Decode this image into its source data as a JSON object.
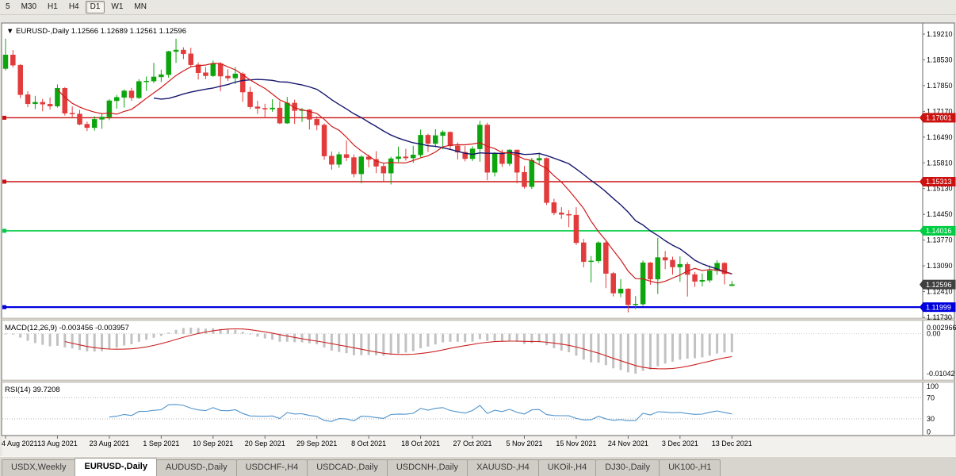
{
  "toolbar": {
    "timeframes": [
      {
        "label": "5",
        "active": false
      },
      {
        "label": "M30",
        "active": false
      },
      {
        "label": "H1",
        "active": false
      },
      {
        "label": "H4",
        "active": false
      },
      {
        "label": "D1",
        "active": true
      },
      {
        "label": "W1",
        "active": false
      },
      {
        "label": "MN",
        "active": false
      }
    ]
  },
  "chart": {
    "title_marker": "▼",
    "symbol_title": "EURUSD-,Daily",
    "ohlc": {
      "open": "1.12566",
      "high": "1.12689",
      "low": "1.12561",
      "close": "1.12596"
    },
    "price_axis_labels": [
      "1.19210",
      "1.18530",
      "1.17850",
      "1.17170",
      "1.16490",
      "1.15810",
      "1.15130",
      "1.14450",
      "1.13770",
      "1.13090",
      "1.12410",
      "1.11730"
    ],
    "hlines": [
      {
        "price": 1.17001,
        "label": "1.17001",
        "color": "#cc1111",
        "width": 1.4
      },
      {
        "price": 1.15313,
        "label": "1.15313",
        "color": "#cc1111",
        "width": 1.4
      },
      {
        "price": 1.14016,
        "label": "1.14016",
        "color": "#00cc44",
        "width": 1.6
      },
      {
        "price": 1.11999,
        "label": "1.11999",
        "color": "#0000dd",
        "width": 2.2
      }
    ],
    "current_price_tag": {
      "label": "1.12596",
      "color": "#3f3f3f"
    },
    "colors": {
      "bull": "#0da50d",
      "bear": "#e23b3b",
      "ma_fast": "#cf1a1a",
      "ma_slow": "#16166e",
      "macd_hist": "#c2c2c2",
      "macd_signal": "#cc2222",
      "rsi_line": "#4f94cd"
    }
  },
  "indicators": {
    "macd": {
      "title": "MACD(12,26,9)",
      "values_text": "-0.003456 -0.003957",
      "axis_labels": [
        "0.002966",
        "0.00",
        "-0.01042"
      ]
    },
    "rsi": {
      "title": "RSI(14)",
      "value_text": "39.7208",
      "axis_labels": [
        "100",
        "70",
        "30",
        "0"
      ],
      "levels": [
        70,
        30
      ]
    }
  },
  "chart_data": {
    "type": "candlestick",
    "title": "EURUSD-,Daily",
    "x_tick_labels": [
      "4 Aug 2021",
      "13 Aug 2021",
      "23 Aug 2021",
      "1 Sep 2021",
      "10 Sep 2021",
      "20 Sep 2021",
      "29 Sep 2021",
      "8 Oct 2021",
      "18 Oct 2021",
      "27 Oct 2021",
      "5 Nov 2021",
      "15 Nov 2021",
      "24 Nov 2021",
      "3 Dec 2021",
      "13 Dec 2021"
    ],
    "x_tick_step": 7,
    "y_range": [
      1.1173,
      1.1921
    ],
    "overlays": [
      {
        "name": "ma-fast",
        "period": 8
      },
      {
        "name": "ma-slow",
        "period": 21
      }
    ],
    "candles": [
      [
        1.183,
        1.1909,
        1.1825,
        1.1866
      ],
      [
        1.1866,
        1.1879,
        1.1833,
        1.1839
      ],
      [
        1.1839,
        1.1842,
        1.1752,
        1.1761
      ],
      [
        1.1761,
        1.177,
        1.1728,
        1.1737
      ],
      [
        1.1737,
        1.1758,
        1.1723,
        1.1741
      ],
      [
        1.1741,
        1.175,
        1.1717,
        1.1736
      ],
      [
        1.1736,
        1.1754,
        1.1722,
        1.1731
      ],
      [
        1.1731,
        1.1788,
        1.1727,
        1.1778
      ],
      [
        1.1778,
        1.1781,
        1.1706,
        1.1712
      ],
      [
        1.1712,
        1.173,
        1.1702,
        1.171
      ],
      [
        1.171,
        1.1721,
        1.168,
        1.1683
      ],
      [
        1.1683,
        1.169,
        1.1665,
        1.1674
      ],
      [
        1.1674,
        1.1704,
        1.1666,
        1.1696
      ],
      [
        1.1696,
        1.1712,
        1.1671,
        1.1702
      ],
      [
        1.1702,
        1.1749,
        1.1694,
        1.1745
      ],
      [
        1.1745,
        1.176,
        1.1724,
        1.1754
      ],
      [
        1.1754,
        1.1775,
        1.1727,
        1.1771
      ],
      [
        1.1771,
        1.1779,
        1.1745,
        1.1753
      ],
      [
        1.1753,
        1.1802,
        1.175,
        1.1796
      ],
      [
        1.1796,
        1.1809,
        1.1771,
        1.1797
      ],
      [
        1.1797,
        1.1845,
        1.1792,
        1.1808
      ],
      [
        1.1808,
        1.1827,
        1.1794,
        1.1814
      ],
      [
        1.1814,
        1.1877,
        1.1806,
        1.1875
      ],
      [
        1.1875,
        1.1909,
        1.1845,
        1.1879
      ],
      [
        1.1879,
        1.1886,
        1.1855,
        1.1869
      ],
      [
        1.1869,
        1.1885,
        1.1833,
        1.184
      ],
      [
        1.184,
        1.1846,
        1.1801,
        1.1819
      ],
      [
        1.1819,
        1.1834,
        1.1802,
        1.1811
      ],
      [
        1.1811,
        1.1851,
        1.1808,
        1.1843
      ],
      [
        1.1843,
        1.1847,
        1.177,
        1.181
      ],
      [
        1.181,
        1.1828,
        1.1797,
        1.1805
      ],
      [
        1.1805,
        1.1834,
        1.1789,
        1.1816
      ],
      [
        1.1816,
        1.1821,
        1.1742,
        1.1768
      ],
      [
        1.1768,
        1.1782,
        1.1723,
        1.1729
      ],
      [
        1.1729,
        1.1745,
        1.171,
        1.1725
      ],
      [
        1.1725,
        1.1737,
        1.1699,
        1.1723
      ],
      [
        1.1723,
        1.1749,
        1.1716,
        1.1726
      ],
      [
        1.1726,
        1.1744,
        1.1683,
        1.1686
      ],
      [
        1.1686,
        1.1755,
        1.1684,
        1.1739
      ],
      [
        1.1739,
        1.1748,
        1.1684,
        1.1719
      ],
      [
        1.1719,
        1.1726,
        1.1689,
        1.1721
      ],
      [
        1.1721,
        1.1723,
        1.1669,
        1.1696
      ],
      [
        1.1696,
        1.1704,
        1.1667,
        1.1681
      ],
      [
        1.1681,
        1.1685,
        1.1589,
        1.1599
      ],
      [
        1.1599,
        1.1611,
        1.1563,
        1.1577
      ],
      [
        1.1577,
        1.161,
        1.1568,
        1.1603
      ],
      [
        1.1603,
        1.164,
        1.1586,
        1.1595
      ],
      [
        1.1595,
        1.1603,
        1.1543,
        1.1552
      ],
      [
        1.1552,
        1.1601,
        1.1527,
        1.1597
      ],
      [
        1.1597,
        1.1603,
        1.1569,
        1.159
      ],
      [
        1.159,
        1.1612,
        1.1554,
        1.1572
      ],
      [
        1.1572,
        1.1581,
        1.1529,
        1.1554
      ],
      [
        1.1554,
        1.1597,
        1.1524,
        1.1592
      ],
      [
        1.1592,
        1.1624,
        1.1583,
        1.1597
      ],
      [
        1.1597,
        1.1618,
        1.1587,
        1.1594
      ],
      [
        1.1594,
        1.1626,
        1.1581,
        1.1602
      ],
      [
        1.1602,
        1.1669,
        1.1596,
        1.1654
      ],
      [
        1.1654,
        1.1658,
        1.161,
        1.1632
      ],
      [
        1.1632,
        1.167,
        1.1622,
        1.1653
      ],
      [
        1.1653,
        1.1667,
        1.1617,
        1.1662
      ],
      [
        1.1662,
        1.1664,
        1.1616,
        1.1626
      ],
      [
        1.1626,
        1.1635,
        1.159,
        1.1609
      ],
      [
        1.1609,
        1.1626,
        1.1585,
        1.1592
      ],
      [
        1.1592,
        1.1625,
        1.1586,
        1.1618
      ],
      [
        1.1618,
        1.1692,
        1.1584,
        1.1681
      ],
      [
        1.1681,
        1.1687,
        1.1535,
        1.1556
      ],
      [
        1.1556,
        1.1609,
        1.1545,
        1.1605
      ],
      [
        1.1605,
        1.1616,
        1.157,
        1.1579
      ],
      [
        1.1579,
        1.1617,
        1.1573,
        1.1615
      ],
      [
        1.1615,
        1.1616,
        1.1527,
        1.1556
      ],
      [
        1.1556,
        1.1573,
        1.1513,
        1.1518
      ],
      [
        1.1518,
        1.1594,
        1.1512,
        1.1588
      ],
      [
        1.1588,
        1.1608,
        1.1575,
        1.1593
      ],
      [
        1.1593,
        1.1595,
        1.147,
        1.1476
      ],
      [
        1.1476,
        1.1486,
        1.1443,
        1.1449
      ],
      [
        1.1449,
        1.1464,
        1.1433,
        1.1445
      ],
      [
        1.1445,
        1.1456,
        1.1411,
        1.1443
      ],
      [
        1.1443,
        1.1464,
        1.1364,
        1.137
      ],
      [
        1.137,
        1.138,
        1.1305,
        1.132
      ],
      [
        1.132,
        1.1335,
        1.1265,
        1.1322
      ],
      [
        1.1322,
        1.1374,
        1.1316,
        1.137
      ],
      [
        1.137,
        1.1374,
        1.125,
        1.1289
      ],
      [
        1.1289,
        1.1293,
        1.1228,
        1.1237
      ],
      [
        1.1237,
        1.1274,
        1.1226,
        1.1248
      ],
      [
        1.1248,
        1.125,
        1.1186,
        1.1206
      ],
      [
        1.1206,
        1.1229,
        1.1195,
        1.1208
      ],
      [
        1.1208,
        1.1323,
        1.1203,
        1.1317
      ],
      [
        1.1317,
        1.1319,
        1.1259,
        1.1274
      ],
      [
        1.1274,
        1.1383,
        1.1235,
        1.1331
      ],
      [
        1.1331,
        1.1348,
        1.13,
        1.1324
      ],
      [
        1.1324,
        1.1333,
        1.1286,
        1.1306
      ],
      [
        1.1306,
        1.1334,
        1.1267,
        1.1313
      ],
      [
        1.1313,
        1.1319,
        1.1228,
        1.1286
      ],
      [
        1.1286,
        1.1293,
        1.1253,
        1.1268
      ],
      [
        1.1268,
        1.1289,
        1.1255,
        1.1271
      ],
      [
        1.1271,
        1.131,
        1.1265,
        1.1296
      ],
      [
        1.1296,
        1.1324,
        1.1285,
        1.1316
      ],
      [
        1.1316,
        1.1319,
        1.126,
        1.1288
      ],
      [
        1.12566,
        1.12689,
        1.12561,
        1.12596
      ]
    ]
  },
  "tabs": [
    {
      "label": "USDX,Weekly",
      "active": false
    },
    {
      "label": "EURUSD-,Daily",
      "active": true
    },
    {
      "label": "AUDUSD-,Daily",
      "active": false
    },
    {
      "label": "USDCHF-,H4",
      "active": false
    },
    {
      "label": "USDCAD-,Daily",
      "active": false
    },
    {
      "label": "USDCNH-,Daily",
      "active": false
    },
    {
      "label": "XAUUSD-,H4",
      "active": false
    },
    {
      "label": "UKOil-,H4",
      "active": false
    },
    {
      "label": "DJ30-,Daily",
      "active": false
    },
    {
      "label": "UK100-,H1",
      "active": false
    }
  ]
}
